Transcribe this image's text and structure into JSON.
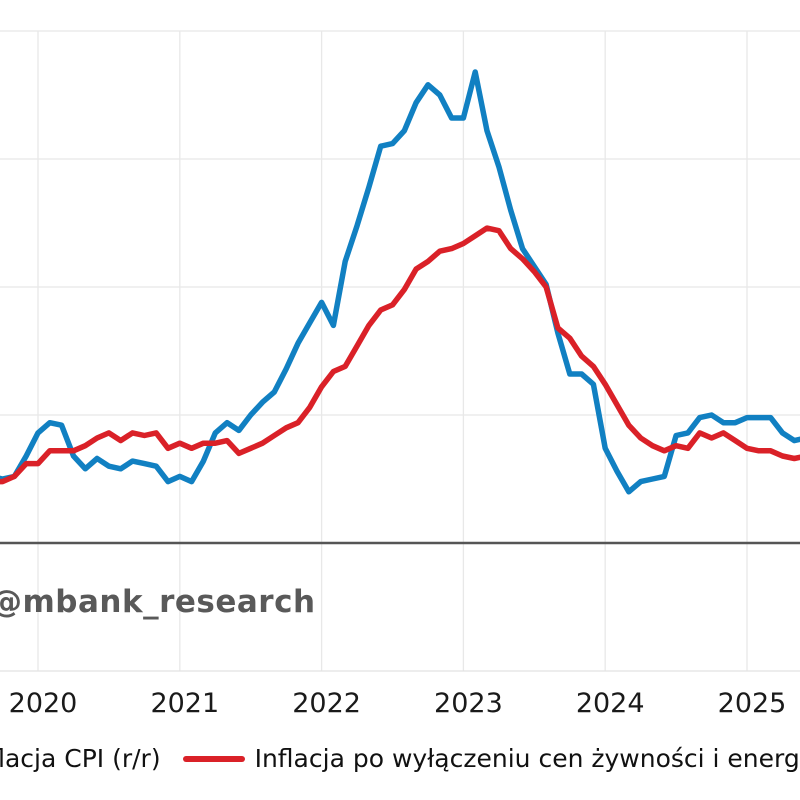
{
  "watermark": "@mbank_research",
  "colors": {
    "cpi_line": "#1180c2",
    "core_line": "#da2128",
    "grid": "#e8e8e8",
    "bottom_spine": "#e2e2e2",
    "zero_line": "#555555",
    "watermark_text": "#595959",
    "tick_label": "#1a1a1a"
  },
  "chart_data": {
    "type": "line",
    "x_unit": "month",
    "grid": true,
    "zero_line": true,
    "legend_position": "bottom",
    "ylim": [
      -5,
      20
    ],
    "y_tick_step": 5,
    "x_tick_labels": [
      "2020",
      "2021",
      "2022",
      "2023",
      "2024",
      "2025"
    ],
    "months": [
      "2019-09",
      "2019-10",
      "2019-11",
      "2019-12",
      "2020-01",
      "2020-02",
      "2020-03",
      "2020-04",
      "2020-05",
      "2020-06",
      "2020-07",
      "2020-08",
      "2020-09",
      "2020-10",
      "2020-11",
      "2020-12",
      "2021-01",
      "2021-02",
      "2021-03",
      "2021-04",
      "2021-05",
      "2021-06",
      "2021-07",
      "2021-08",
      "2021-09",
      "2021-10",
      "2021-11",
      "2021-12",
      "2022-01",
      "2022-02",
      "2022-03",
      "2022-04",
      "2022-05",
      "2022-06",
      "2022-07",
      "2022-08",
      "2022-09",
      "2022-10",
      "2022-11",
      "2022-12",
      "2023-01",
      "2023-02",
      "2023-03",
      "2023-04",
      "2023-05",
      "2023-06",
      "2023-07",
      "2023-08",
      "2023-09",
      "2023-10",
      "2023-11",
      "2023-12",
      "2024-01",
      "2024-02",
      "2024-03",
      "2024-04",
      "2024-05",
      "2024-06",
      "2024-07",
      "2024-08",
      "2024-09",
      "2024-10",
      "2024-11",
      "2024-12",
      "2025-01",
      "2025-02",
      "2025-03",
      "2025-04",
      "2025-05",
      "2025-06"
    ],
    "series": [
      {
        "name": "Inflacja CPI (r/r)",
        "color": "#1180c2",
        "values": [
          2.6,
          2.5,
          2.6,
          3.4,
          4.3,
          4.7,
          4.6,
          3.4,
          2.9,
          3.3,
          3.0,
          2.9,
          3.2,
          3.1,
          3.0,
          2.4,
          2.6,
          2.4,
          3.2,
          4.3,
          4.7,
          4.4,
          5.0,
          5.5,
          5.9,
          6.8,
          7.8,
          8.6,
          9.4,
          8.5,
          11.0,
          12.4,
          13.9,
          15.5,
          15.6,
          16.1,
          17.2,
          17.9,
          17.5,
          16.6,
          16.6,
          18.4,
          16.1,
          14.7,
          13.0,
          11.5,
          10.8,
          10.1,
          8.2,
          6.6,
          6.6,
          6.2,
          3.7,
          2.8,
          2.0,
          2.4,
          2.5,
          2.6,
          4.2,
          4.3,
          4.9,
          5.0,
          4.7,
          4.7,
          4.9,
          4.9,
          4.9,
          4.3,
          4.0,
          4.1
        ]
      },
      {
        "name": "Inflacja po wyłączeniu cen żywności i energii (r/r)",
        "color": "#da2128",
        "values": [
          2.4,
          2.4,
          2.6,
          3.1,
          3.1,
          3.6,
          3.6,
          3.6,
          3.8,
          4.1,
          4.3,
          4.0,
          4.3,
          4.2,
          4.3,
          3.7,
          3.9,
          3.7,
          3.9,
          3.9,
          4.0,
          3.5,
          3.7,
          3.9,
          4.2,
          4.5,
          4.7,
          5.3,
          6.1,
          6.7,
          6.9,
          7.7,
          8.5,
          9.1,
          9.3,
          9.9,
          10.7,
          11.0,
          11.4,
          11.5,
          11.7,
          12.0,
          12.3,
          12.2,
          11.5,
          11.1,
          10.6,
          10.0,
          8.4,
          8.0,
          7.3,
          6.9,
          6.2,
          5.4,
          4.6,
          4.1,
          3.8,
          3.6,
          3.8,
          3.7,
          4.3,
          4.1,
          4.3,
          4.0,
          3.7,
          3.6,
          3.6,
          3.4,
          3.3,
          3.4
        ]
      }
    ]
  }
}
